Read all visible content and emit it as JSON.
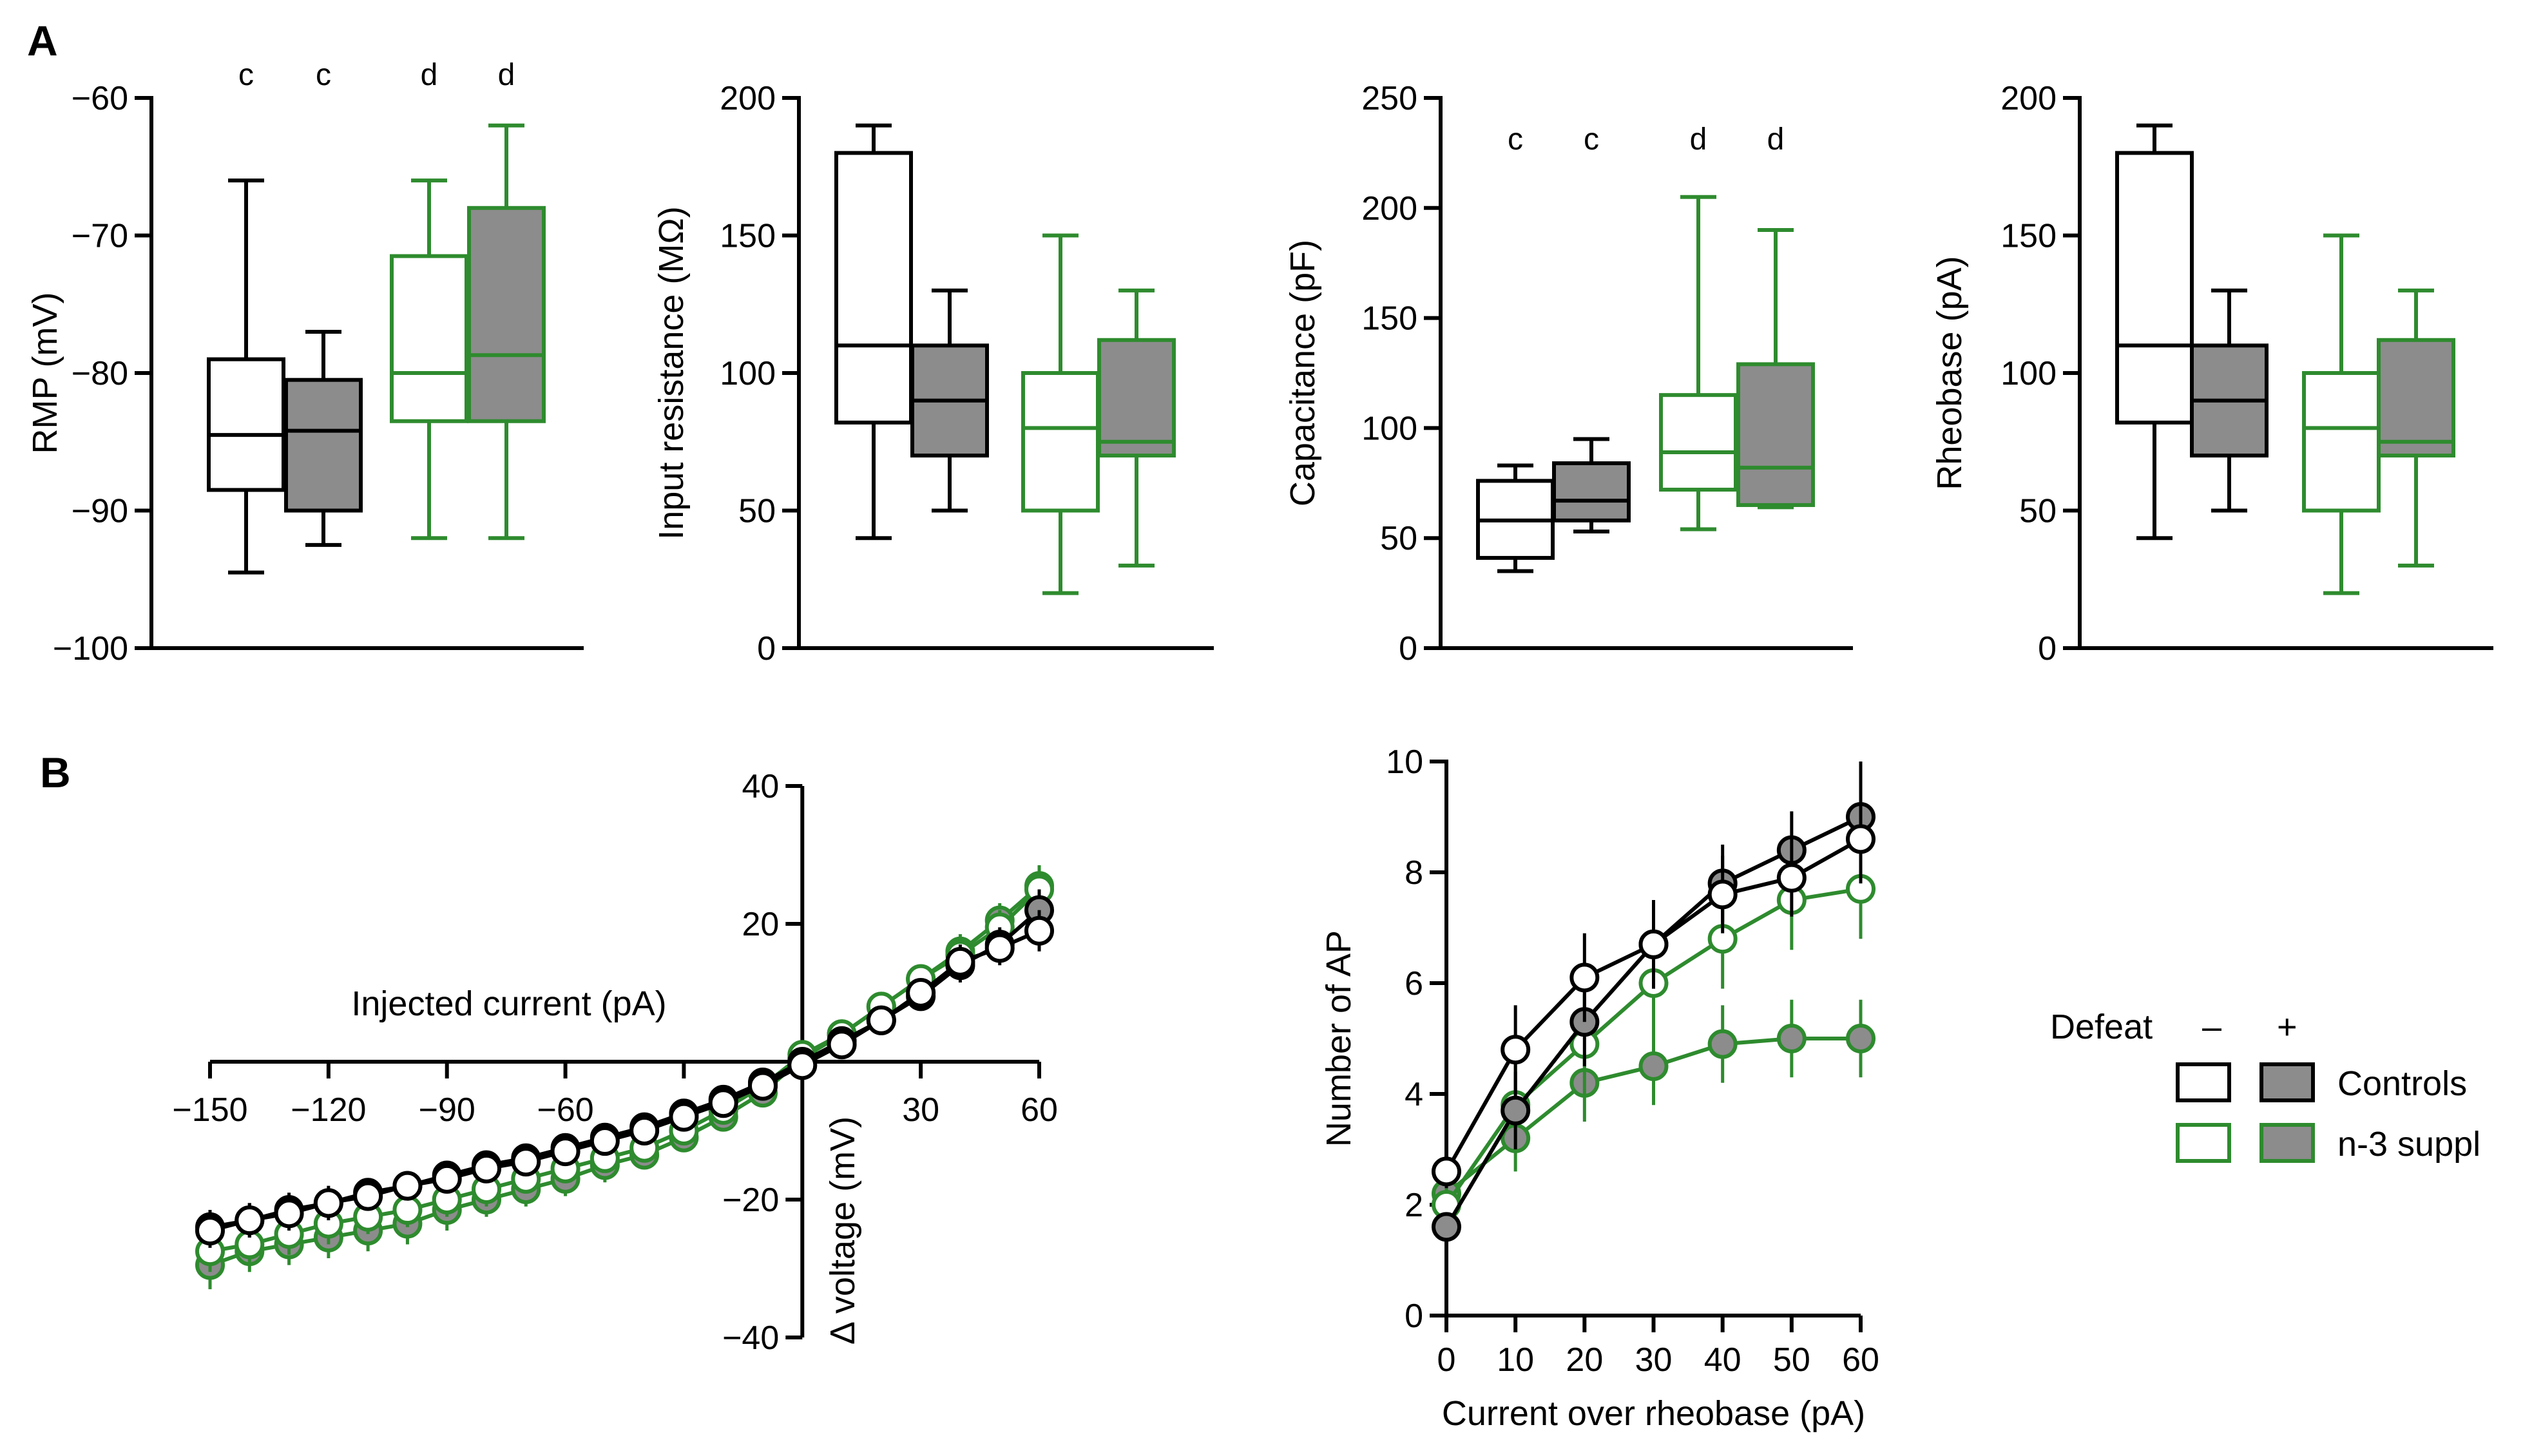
{
  "figure": {
    "panel_a_label": "A",
    "panel_b_label": "B"
  },
  "colors": {
    "controls": "#000000",
    "n3": "#2e8b2e",
    "filled": "#8c8c8c",
    "open": "#ffffff"
  },
  "legend": {
    "title": "Defeat",
    "minus": "–",
    "plus": "+",
    "rows": [
      {
        "name": "Controls",
        "color": "#000000"
      },
      {
        "name": "n-3 suppl",
        "color": "#2e8b2e"
      }
    ]
  },
  "chart_data": [
    {
      "id": "rmp",
      "type": "box",
      "ylabel": "RMP (mV)",
      "ylim": [
        -100,
        -60
      ],
      "yticks": [
        -60,
        -70,
        -80,
        -90,
        -100
      ],
      "ytick_labels": [
        "−60",
        "−70",
        "−80",
        "−90",
        "−100"
      ],
      "boxes": [
        {
          "group": "Controls, defeat –",
          "whisker_low": -94.5,
          "q1": -88.5,
          "median": -84.5,
          "q3": -79,
          "whisker_high": -66,
          "sig": "c"
        },
        {
          "group": "Controls, defeat +",
          "whisker_low": -92.5,
          "q1": -90,
          "median": -84.2,
          "q3": -80.5,
          "whisker_high": -77,
          "sig": "c"
        },
        {
          "group": "n-3 suppl, defeat –",
          "whisker_low": -92,
          "q1": -83.5,
          "median": -80,
          "q3": -71.5,
          "whisker_high": -66,
          "sig": "d"
        },
        {
          "group": "n-3 suppl, defeat +",
          "whisker_low": -92,
          "q1": -83.5,
          "median": -78.7,
          "q3": -68,
          "whisker_high": -62,
          "sig": "d"
        }
      ]
    },
    {
      "id": "input_resistance",
      "type": "box",
      "ylabel": "Input resistance (MΩ)",
      "ylim": [
        0,
        200
      ],
      "yticks": [
        0,
        50,
        100,
        150,
        200
      ],
      "ytick_labels": [
        "0",
        "50",
        "100",
        "150",
        "200"
      ],
      "boxes": [
        {
          "group": "Controls, defeat –",
          "whisker_low": 40,
          "q1": 82,
          "median": 110,
          "q3": 180,
          "whisker_high": 190,
          "sig": ""
        },
        {
          "group": "Controls, defeat +",
          "whisker_low": 50,
          "q1": 70,
          "median": 90,
          "q3": 110,
          "whisker_high": 130,
          "sig": ""
        },
        {
          "group": "n-3 suppl, defeat –",
          "whisker_low": 20,
          "q1": 50,
          "median": 80,
          "q3": 100,
          "whisker_high": 150,
          "sig": ""
        },
        {
          "group": "n-3 suppl, defeat +",
          "whisker_low": 30,
          "q1": 70,
          "median": 75,
          "q3": 112,
          "whisker_high": 130,
          "sig": ""
        }
      ]
    },
    {
      "id": "capacitance",
      "type": "box",
      "ylabel": "Capacitance (pF)",
      "ylim": [
        0,
        250
      ],
      "yticks": [
        0,
        50,
        100,
        150,
        200,
        250
      ],
      "ytick_labels": [
        "0",
        "50",
        "100",
        "150",
        "200",
        "250"
      ],
      "boxes": [
        {
          "group": "Controls, defeat –",
          "whisker_low": 35,
          "q1": 41,
          "median": 58,
          "q3": 76,
          "whisker_high": 83,
          "sig": "c"
        },
        {
          "group": "Controls, defeat +",
          "whisker_low": 53,
          "q1": 58,
          "median": 67,
          "q3": 84,
          "whisker_high": 95,
          "sig": "c"
        },
        {
          "group": "n-3 suppl, defeat –",
          "whisker_low": 54,
          "q1": 72,
          "median": 89,
          "q3": 115,
          "whisker_high": 205,
          "sig": "d"
        },
        {
          "group": "n-3 suppl, defeat +",
          "whisker_low": 64,
          "q1": 65,
          "median": 82,
          "q3": 129,
          "whisker_high": 190,
          "sig": "d"
        }
      ]
    },
    {
      "id": "rheobase",
      "type": "box",
      "ylabel": "Rheobase (pA)",
      "ylim": [
        0,
        200
      ],
      "yticks": [
        0,
        50,
        100,
        150,
        200
      ],
      "ytick_labels": [
        "0",
        "50",
        "100",
        "150",
        "200"
      ],
      "boxes": [
        {
          "group": "Controls, defeat –",
          "whisker_low": 40,
          "q1": 82,
          "median": 110,
          "q3": 180,
          "whisker_high": 190,
          "sig": ""
        },
        {
          "group": "Controls, defeat +",
          "whisker_low": 50,
          "q1": 70,
          "median": 90,
          "q3": 110,
          "whisker_high": 130,
          "sig": ""
        },
        {
          "group": "n-3 suppl, defeat –",
          "whisker_low": 20,
          "q1": 50,
          "median": 80,
          "q3": 100,
          "whisker_high": 150,
          "sig": ""
        },
        {
          "group": "n-3 suppl, defeat +",
          "whisker_low": 30,
          "q1": 70,
          "median": 75,
          "q3": 112,
          "whisker_high": 130,
          "sig": ""
        }
      ]
    },
    {
      "id": "iv_curve",
      "type": "line",
      "xlabel": "Injected current (pA)",
      "ylabel": "Δ voltage (mV)",
      "xlim": [
        -150,
        60
      ],
      "ylim": [
        -40,
        40
      ],
      "xticks": [
        -150,
        -120,
        -90,
        -60,
        30,
        60
      ],
      "xtick_labels": [
        "−150",
        "−120",
        "−90",
        "−60",
        "30",
        "60"
      ],
      "yticks": [
        40,
        20,
        -20,
        -40
      ],
      "ytick_labels": [
        "40",
        "20",
        "−20",
        "−40"
      ],
      "x": [
        -150,
        -140,
        -130,
        -120,
        -110,
        -100,
        -90,
        -80,
        -70,
        -60,
        -50,
        -40,
        -30,
        -20,
        -10,
        0,
        10,
        20,
        30,
        40,
        50,
        60
      ],
      "series": [
        {
          "name": "n-3 suppl, defeat +",
          "color": "#2e8b2e",
          "fill": "#8c8c8c",
          "values": [
            -29.5,
            -27.5,
            -26.5,
            -25.5,
            -24.5,
            -23.5,
            -21.5,
            -20,
            -18.5,
            -17,
            -15,
            -13.5,
            -11,
            -8,
            -4.5,
            0.5,
            4,
            8,
            12,
            16,
            20.5,
            25.5
          ],
          "err": [
            3.5,
            3,
            3,
            3,
            3,
            3,
            3,
            2.5,
            2.5,
            2.5,
            2.5,
            2,
            2,
            2,
            1.5,
            1,
            1.5,
            2,
            2,
            2.5,
            2.5,
            3
          ]
        },
        {
          "name": "n-3 suppl, defeat –",
          "color": "#2e8b2e",
          "fill": "#ffffff",
          "values": [
            -27.5,
            -26.5,
            -25,
            -23.5,
            -22.5,
            -21.5,
            -20,
            -18.5,
            -17,
            -15.5,
            -14,
            -12.5,
            -10,
            -7,
            -3.5,
            1,
            4,
            8,
            12,
            15.5,
            19.5,
            25
          ],
          "err": [
            3,
            3,
            3,
            3,
            2.5,
            2.5,
            2.5,
            2.5,
            2,
            2,
            2,
            2,
            2,
            1.5,
            1.5,
            1,
            1.5,
            2,
            2,
            2.5,
            2.5,
            3
          ]
        },
        {
          "name": "Controls, defeat +",
          "color": "#000000",
          "fill": "#8c8c8c",
          "values": [
            -24,
            -23,
            -21.5,
            -20.5,
            -19,
            -18,
            -16.5,
            -15,
            -14,
            -12.5,
            -11,
            -9.5,
            -7.5,
            -5.5,
            -3,
            0,
            3,
            6,
            9.5,
            14,
            17,
            22
          ],
          "err": [
            2.5,
            2.5,
            2.5,
            2.5,
            2,
            2,
            2,
            2,
            2,
            1.5,
            1.5,
            1.5,
            1.5,
            1.5,
            1,
            1,
            1,
            1.5,
            2,
            2.5,
            2.5,
            3
          ]
        },
        {
          "name": "Controls, defeat –",
          "color": "#000000",
          "fill": "#ffffff",
          "values": [
            -24.5,
            -23,
            -22,
            -20.5,
            -19.5,
            -18,
            -17,
            -15.5,
            -14.5,
            -13,
            -11.5,
            -10,
            -8,
            -6,
            -3.5,
            -0.5,
            2.5,
            6,
            10,
            14.5,
            16.5,
            19
          ],
          "err": [
            2.5,
            2.5,
            2.5,
            2,
            2,
            2,
            2,
            2,
            2,
            1.5,
            1.5,
            1.5,
            1.5,
            1,
            1,
            1,
            1,
            1.5,
            2,
            2.5,
            2.5,
            3
          ]
        }
      ]
    },
    {
      "id": "ap_count",
      "type": "line",
      "xlabel": "Current over rheobase (pA)",
      "ylabel": "Number of AP",
      "xlim": [
        0,
        60
      ],
      "ylim": [
        0,
        10
      ],
      "xticks": [
        0,
        10,
        20,
        30,
        40,
        50,
        60
      ],
      "xtick_labels": [
        "0",
        "10",
        "20",
        "30",
        "40",
        "50",
        "60"
      ],
      "yticks": [
        0,
        2,
        4,
        6,
        8,
        10
      ],
      "ytick_labels": [
        "0",
        "2",
        "4",
        "6",
        "8",
        "10"
      ],
      "x": [
        0,
        10,
        20,
        30,
        40,
        50,
        60
      ],
      "series": [
        {
          "name": "n-3 suppl, defeat +",
          "color": "#2e8b2e",
          "fill": "#8c8c8c",
          "values": [
            2.2,
            3.2,
            4.2,
            4.5,
            4.9,
            5.0,
            5.0
          ],
          "err": [
            0.4,
            0.6,
            0.7,
            0.7,
            0.7,
            0.7,
            0.7
          ]
        },
        {
          "name": "n-3 suppl, defeat –",
          "color": "#2e8b2e",
          "fill": "#ffffff",
          "values": [
            2.0,
            3.8,
            4.9,
            6.0,
            6.8,
            7.5,
            7.7
          ],
          "err": [
            0.3,
            0.8,
            0.9,
            0.9,
            0.9,
            0.9,
            0.9
          ]
        },
        {
          "name": "Controls, defeat +",
          "color": "#000000",
          "fill": "#8c8c8c",
          "values": [
            1.6,
            3.7,
            5.3,
            6.7,
            7.8,
            8.4,
            9.0
          ],
          "err": [
            0.2,
            0.7,
            0.8,
            0.8,
            0.7,
            0.7,
            1.0
          ]
        },
        {
          "name": "Controls, defeat –",
          "color": "#000000",
          "fill": "#ffffff",
          "values": [
            2.6,
            4.8,
            6.1,
            6.7,
            7.6,
            7.9,
            8.6
          ],
          "err": [
            0.3,
            0.8,
            0.8,
            0.8,
            0.7,
            0.7,
            0.8
          ]
        }
      ]
    }
  ]
}
